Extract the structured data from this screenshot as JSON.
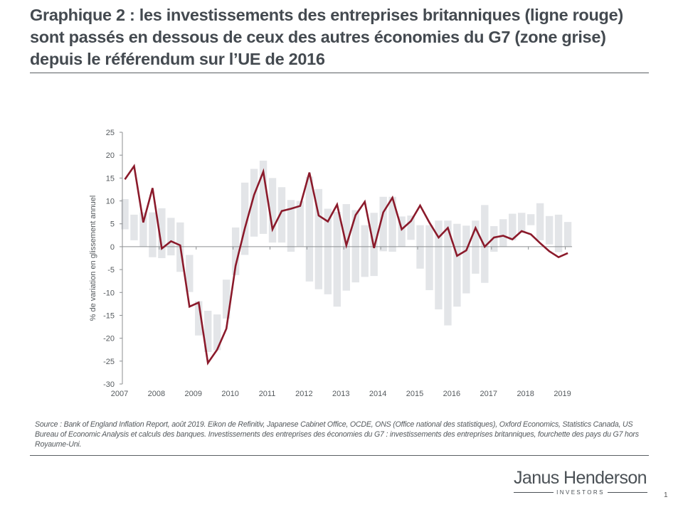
{
  "title": "Graphique 2 : les investissements des entreprises britanniques (ligne rouge) sont passés en dessous de ceux des autres économies du G7 (zone grise) depuis le référendum sur l’UE de 2016",
  "source": "Source : Bank of England Inflation Report, août 2019. Eikon de Refinitiv, Japanese Cabinet Office, OCDE, ONS (Office national des statistiques), Oxford Economics, Statistics Canada, US Bureau of Economic Analysis et calculs des banques. Investissements des entreprises des économies du G7 : investissements des entreprises britanniques, fourchette des pays du G7 hors Royaume-Uni.",
  "logo": {
    "name": "Janus Henderson",
    "sub": "INVESTORS"
  },
  "page_number": "1",
  "colors": {
    "line": "#8b1a2b",
    "range": "#e3e5e8",
    "axis": "#8c8f92",
    "text": "#444a50"
  },
  "chart_data": {
    "type": "line",
    "title": "",
    "xlabel": "",
    "ylabel": "% de variation  en glissement annuel",
    "ylim": [
      -30,
      25
    ],
    "yticks": [
      25,
      20,
      15,
      10,
      5,
      0,
      -5,
      -10,
      -15,
      -20,
      -25,
      -30
    ],
    "xtick_labels": [
      "2007",
      "2008",
      "2009",
      "2010",
      "2011",
      "2012",
      "2013",
      "2014",
      "2015",
      "2016",
      "2017",
      "2018",
      "2019"
    ],
    "frequency": "quarterly",
    "start": "2007 Q1",
    "grid": false,
    "series": [
      {
        "name": "Investissements des entreprises britanniques",
        "type": "line",
        "values": [
          14.7,
          17.6,
          5.3,
          12.8,
          -0.4,
          1.2,
          0.3,
          -13.1,
          -12.2,
          -25.4,
          -22.5,
          -17.9,
          -4.2,
          4.0,
          11.3,
          16.4,
          3.8,
          7.8,
          8.3,
          8.9,
          16.2,
          6.8,
          5.5,
          9.2,
          0.3,
          6.9,
          9.8,
          -0.3,
          7.5,
          10.7,
          3.8,
          5.6,
          9.0,
          5.3,
          2.0,
          4.1,
          -2.0,
          -0.8,
          4.1,
          0.0,
          2.0,
          2.4,
          1.6,
          3.4,
          2.7,
          0.8,
          -1.0,
          -2.3,
          -1.4
        ]
      },
      {
        "name": "Fourchette des pays du G7 hors Royaume-Uni",
        "type": "range",
        "low": [
          3.8,
          1.4,
          0.0,
          -2.3,
          -2.5,
          -1.9,
          -5.5,
          -9.9,
          -19.4,
          -23.0,
          -22.6,
          -15.7,
          -6.2,
          -1.8,
          2.2,
          2.8,
          0.9,
          0.9,
          -1.1,
          0.1,
          -7.6,
          -9.3,
          -10.4,
          -13.1,
          -9.6,
          -7.8,
          -6.6,
          -6.4,
          -1.0,
          -1.1,
          0.0,
          1.5,
          -4.8,
          -9.5,
          -13.7,
          -17.2,
          -13.1,
          -10.2,
          -5.9,
          -7.9,
          -1.1,
          0.0,
          1.4,
          3.0,
          4.7,
          1.4,
          0.5,
          -1.2,
          0.0
        ],
        "high": [
          10.4,
          7.0,
          7.5,
          7.5,
          8.4,
          6.3,
          5.3,
          -1.8,
          -11.9,
          -14.0,
          -14.8,
          -7.2,
          4.2,
          14.0,
          17.0,
          18.8,
          15.0,
          13.0,
          10.2,
          10.0,
          15.3,
          12.6,
          8.3,
          7.6,
          9.3,
          8.0,
          4.7,
          7.4,
          10.9,
          10.9,
          6.6,
          6.8,
          4.7,
          4.7,
          5.7,
          5.7,
          5.0,
          4.6,
          5.7,
          9.1,
          4.5,
          6.0,
          7.2,
          7.4,
          7.1,
          9.5,
          6.7,
          7.0,
          5.4
        ]
      }
    ]
  }
}
